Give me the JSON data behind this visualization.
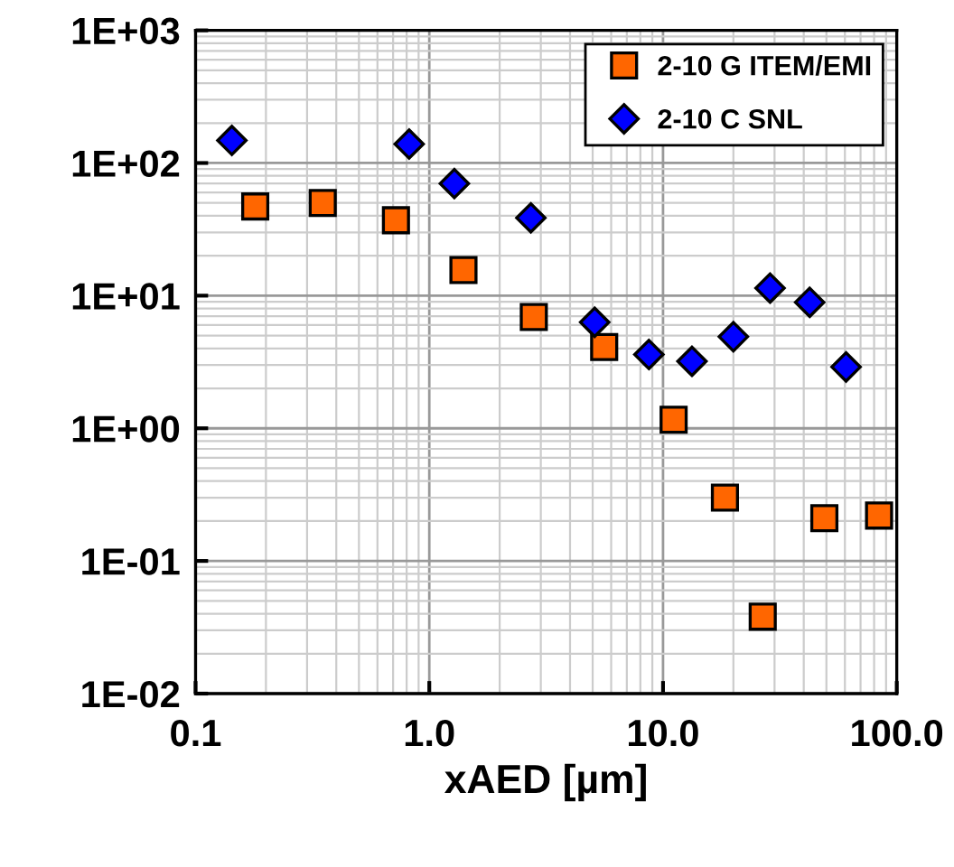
{
  "chart_data": {
    "type": "scatter",
    "xlabel": "xAED [µm]",
    "log": "xy",
    "grid": true,
    "legend": "top right",
    "xlim": [
      0.1,
      100
    ],
    "ylim": [
      0.01,
      1000
    ],
    "xticks": [
      {
        "value": 0.1,
        "label": "0.1"
      },
      {
        "value": 1,
        "label": "1.0"
      },
      {
        "value": 10,
        "label": "10.0"
      },
      {
        "value": 100,
        "label": "100.0"
      }
    ],
    "yticks": [
      {
        "value": 0.01,
        "label": "1E-02"
      },
      {
        "value": 0.1,
        "label": "1E-01"
      },
      {
        "value": 1,
        "label": "1E+00"
      },
      {
        "value": 10,
        "label": "1E+01"
      },
      {
        "value": 100,
        "label": "1E+02"
      },
      {
        "value": 1000,
        "label": "1E+03"
      }
    ],
    "series": [
      {
        "name": "2-10 G ITEM/EMI",
        "color": "#ff6600",
        "marker": "square",
        "x": [
          0.18,
          0.35,
          0.72,
          1.4,
          2.8,
          5.6,
          11.1,
          18.4,
          26.7,
          49,
          84
        ],
        "values": [
          47,
          50,
          37,
          15.6,
          6.9,
          4.1,
          1.16,
          0.3,
          0.038,
          0.21,
          0.22
        ]
      },
      {
        "name": "2-10 C SNL",
        "color": "#0000ff",
        "marker": "diamond",
        "x": [
          0.143,
          0.82,
          1.28,
          2.72,
          5.1,
          8.7,
          13.3,
          20,
          28.7,
          42.4,
          60.7
        ],
        "values": [
          148,
          139,
          70,
          38.6,
          6.3,
          3.6,
          3.2,
          4.9,
          11.4,
          8.9,
          2.9
        ]
      }
    ]
  }
}
